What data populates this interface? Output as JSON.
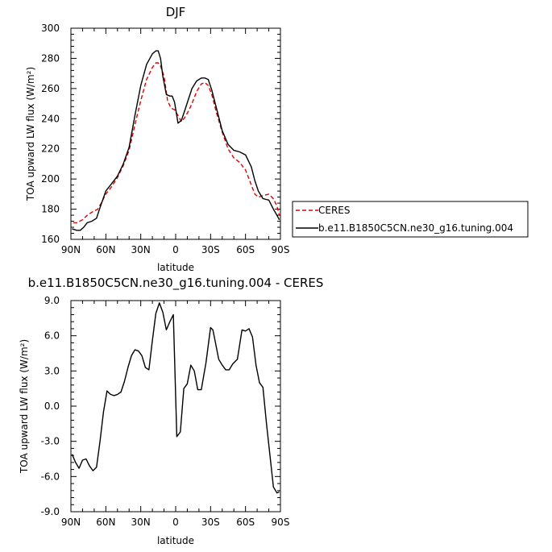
{
  "chart_data": [
    {
      "type": "line",
      "title": "DJF",
      "xlabel": "latitude",
      "ylabel": "TOA upward LW flux (W/m²)",
      "xlim": [
        90,
        -90
      ],
      "ylim": [
        160,
        300
      ],
      "x_ticks": [
        90,
        60,
        30,
        0,
        -30,
        -60,
        -90
      ],
      "x_tick_labels": [
        "90N",
        "60N",
        "30N",
        "0",
        "30S",
        "60S",
        "90S"
      ],
      "y_ticks": [
        160,
        180,
        200,
        220,
        240,
        260,
        280,
        300
      ],
      "y_tick_labels": [
        "160",
        "180",
        "200",
        "220",
        "240",
        "260",
        "280",
        "300"
      ],
      "legend_placement": "right",
      "series": [
        {
          "name": "CERES",
          "color": "#e00000",
          "style": "dashed",
          "x": [
            88,
            85,
            80,
            76,
            72,
            67,
            64,
            60,
            55,
            50,
            45,
            40,
            35,
            30,
            25,
            20,
            17,
            15,
            13,
            10,
            7,
            4,
            1,
            -2,
            -5,
            -8,
            -11,
            -14,
            -18,
            -22,
            -25,
            -28,
            -31,
            -35,
            -40,
            -45,
            -50,
            -55,
            -60,
            -65,
            -68,
            -71,
            -75,
            -80,
            -84,
            -87,
            -89
          ],
          "values": [
            171,
            171,
            173,
            176,
            178,
            180,
            184,
            190,
            195,
            201,
            209,
            219,
            236,
            252,
            266,
            274,
            277,
            277,
            275,
            268,
            252,
            247,
            246,
            242,
            238,
            241,
            245,
            250,
            258,
            263,
            264,
            262,
            256,
            244,
            231,
            220,
            214,
            211,
            206,
            196,
            190,
            188,
            189,
            190,
            187,
            182,
            176
          ]
        },
        {
          "name": "b.e11.B1850C5CN.ne30_g16.tuning.004",
          "color": "#000000",
          "style": "solid",
          "x": [
            89,
            85,
            82,
            79,
            76,
            72,
            68,
            65,
            60,
            55,
            50,
            45,
            40,
            35,
            30,
            25,
            20,
            17,
            15,
            13,
            11,
            8,
            5,
            3,
            1,
            -2,
            -5,
            -8,
            -11,
            -14,
            -18,
            -22,
            -25,
            -28,
            -31,
            -35,
            -40,
            -45,
            -50,
            -55,
            -60,
            -65,
            -68,
            -71,
            -75,
            -80,
            -84,
            -87,
            -89
          ],
          "values": [
            167,
            166,
            166,
            168,
            171,
            172,
            174,
            181,
            192,
            197,
            202,
            210,
            221,
            242,
            262,
            276,
            283,
            285,
            285,
            280,
            268,
            256,
            255,
            255,
            251,
            237,
            239,
            246,
            253,
            260,
            265,
            267,
            267,
            266,
            259,
            247,
            232,
            223,
            219,
            218,
            216,
            208,
            199,
            192,
            187,
            186,
            180,
            176,
            173
          ]
        }
      ]
    },
    {
      "type": "line",
      "title": "b.e11.B1850C5CN.ne30_g16.tuning.004 - CERES",
      "xlabel": "latitude",
      "ylabel": "TOA upward LW flux (W/m²)",
      "xlim": [
        90,
        -90
      ],
      "ylim": [
        -9.0,
        9.0
      ],
      "x_ticks": [
        90,
        60,
        30,
        0,
        -30,
        -60,
        -90
      ],
      "x_tick_labels": [
        "90N",
        "60N",
        "30N",
        "0",
        "30S",
        "60S",
        "90S"
      ],
      "y_ticks": [
        -9.0,
        -6.0,
        -3.0,
        0.0,
        3.0,
        6.0,
        9.0
      ],
      "y_tick_labels": [
        "-9.0",
        "-6.0",
        "-3.0",
        "0.0",
        "3.0",
        "6.0",
        "9.0"
      ],
      "series": [
        {
          "color": "#000000",
          "style": "solid",
          "x": [
            89,
            86,
            83,
            80,
            77,
            74,
            71,
            68,
            65,
            62,
            59,
            56,
            53,
            50,
            47,
            44,
            41,
            38,
            35,
            32,
            29,
            26,
            23,
            20,
            17,
            14,
            11,
            8,
            5,
            2,
            -1,
            -4,
            -7,
            -10,
            -13,
            -16,
            -19,
            -22,
            -26,
            -30,
            -32,
            -34,
            -37,
            -40,
            -43,
            -46,
            -49,
            -53,
            -57,
            -60,
            -63,
            -66,
            -69,
            -72,
            -75,
            -78,
            -81,
            -84,
            -87,
            -89
          ],
          "values": [
            -4.1,
            -4.8,
            -5.3,
            -4.6,
            -4.5,
            -5.1,
            -5.5,
            -5.2,
            -3.0,
            -0.5,
            1.3,
            1.0,
            0.9,
            1.0,
            1.2,
            2.1,
            3.3,
            4.3,
            4.8,
            4.7,
            4.3,
            3.3,
            3.1,
            5.6,
            7.9,
            8.8,
            8.0,
            6.5,
            7.2,
            7.8,
            -2.6,
            -2.2,
            1.5,
            1.9,
            3.5,
            3.0,
            1.4,
            1.4,
            3.7,
            6.7,
            6.5,
            5.5,
            4.0,
            3.5,
            3.1,
            3.1,
            3.6,
            4.0,
            6.5,
            6.4,
            6.6,
            5.9,
            3.5,
            2.0,
            1.6,
            -1.5,
            -4.2,
            -6.9,
            -7.4,
            -7.3
          ]
        }
      ]
    }
  ]
}
